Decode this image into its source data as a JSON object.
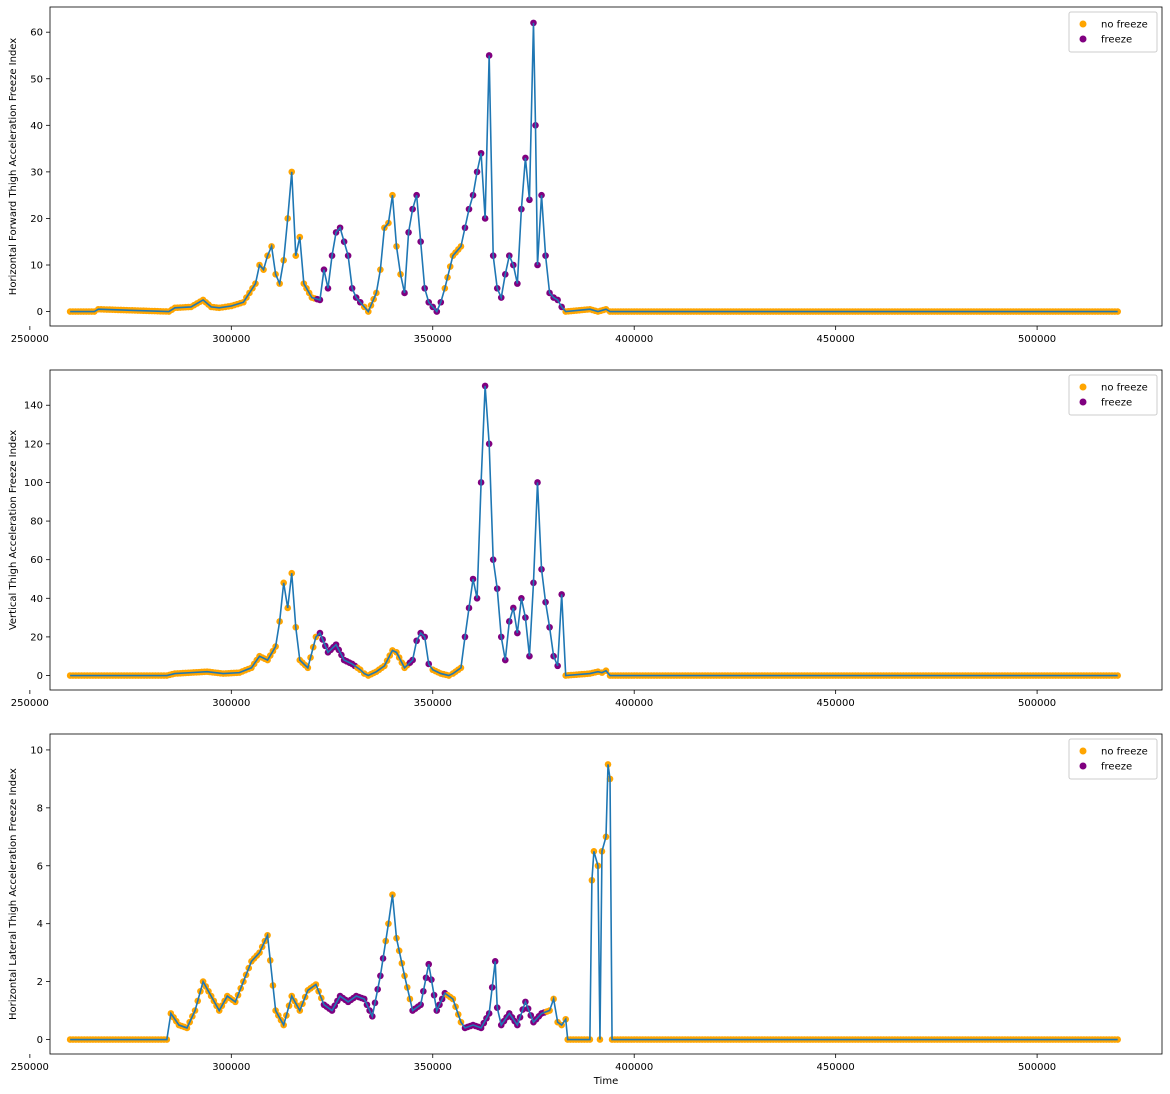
{
  "colors": {
    "line": "#1f77b4",
    "no_freeze": "#ffa500",
    "freeze": "#800080"
  },
  "chart_data": [
    {
      "type": "line",
      "ylabel": "Horizontal Forward Thigh Acceleration Freeze Index",
      "xlabel": "",
      "xlim": [
        260000,
        520000
      ],
      "ylim": [
        0,
        62
      ],
      "xticks": [
        250000,
        300000,
        350000,
        400000,
        450000,
        500000
      ],
      "yticks": [
        0,
        10,
        20,
        30,
        40,
        50,
        60
      ],
      "legend": {
        "position": "top-right",
        "entries": [
          "no freeze",
          "freeze"
        ]
      },
      "x": [
        260000,
        266000,
        267000,
        284500,
        286000,
        290000,
        293000,
        295000,
        297000,
        300000,
        303000,
        306000,
        307000,
        308000,
        309000,
        310000,
        311000,
        312000,
        313000,
        314000,
        315000,
        316000,
        317000,
        318000,
        320000,
        322000,
        323000,
        324000,
        325000,
        326000,
        327000,
        328000,
        329000,
        330000,
        331000,
        332000,
        333000,
        334000,
        336000,
        337000,
        338000,
        339000,
        340000,
        341000,
        342000,
        343000,
        344000,
        345000,
        346000,
        347000,
        348000,
        349000,
        350000,
        351000,
        352000,
        353000,
        355000,
        357000,
        358000,
        359000,
        360000,
        361000,
        362000,
        363000,
        364000,
        365000,
        366000,
        367000,
        368000,
        369000,
        370000,
        371000,
        372000,
        373000,
        374000,
        375000,
        375500,
        376000,
        377000,
        378000,
        379000,
        380000,
        381000,
        382000,
        383000,
        389000,
        391000,
        393000,
        394000,
        400000,
        450000,
        520000
      ],
      "y": [
        0,
        0,
        0.5,
        0,
        0.8,
        1,
        2.5,
        1,
        0.8,
        1.2,
        2,
        6,
        10,
        9,
        12,
        14,
        8,
        6,
        11,
        20,
        30,
        12,
        16,
        6,
        3,
        2.5,
        9,
        5,
        12,
        17,
        18,
        15,
        12,
        5,
        3,
        2,
        1,
        0,
        4,
        9,
        18,
        19,
        25,
        14,
        8,
        4,
        17,
        22,
        25,
        15,
        5,
        2,
        1,
        0,
        2,
        5,
        12,
        14,
        18,
        22,
        25,
        30,
        34,
        20,
        55,
        12,
        5,
        3,
        8,
        12,
        10,
        6,
        22,
        33,
        24,
        62,
        40,
        10,
        25,
        12,
        4,
        3,
        2.5,
        1,
        0,
        0.5,
        0,
        0.5,
        0,
        0,
        0,
        0
      ],
      "freeze_ranges": [
        [
          321000,
          332000
        ],
        [
          343000,
          352000
        ],
        [
          358000,
          370000
        ],
        [
          371000,
          382000
        ]
      ]
    },
    {
      "type": "line",
      "ylabel": "Vertical Thigh Acceleration Freeze Index",
      "xlabel": "",
      "xlim": [
        260000,
        520000
      ],
      "ylim": [
        0,
        150
      ],
      "xticks": [
        250000,
        300000,
        350000,
        400000,
        450000,
        500000
      ],
      "yticks": [
        0,
        20,
        40,
        60,
        80,
        100,
        120,
        140
      ],
      "legend": {
        "position": "top-right",
        "entries": [
          "no freeze",
          "freeze"
        ]
      },
      "x": [
        260000,
        284000,
        286000,
        290000,
        294000,
        298000,
        302000,
        305000,
        307000,
        309000,
        311000,
        312000,
        313000,
        314000,
        315000,
        316000,
        317000,
        319000,
        321000,
        322000,
        324000,
        326000,
        328000,
        330000,
        332000,
        333000,
        334000,
        336000,
        338000,
        340000,
        341000,
        343000,
        345000,
        346000,
        347000,
        348000,
        349000,
        350000,
        352000,
        354000,
        355000,
        357000,
        358000,
        359000,
        360000,
        361000,
        362000,
        363000,
        364000,
        365000,
        366000,
        367000,
        368000,
        369000,
        370000,
        371000,
        372000,
        373000,
        374000,
        375000,
        376000,
        377000,
        378000,
        379000,
        380000,
        381000,
        382000,
        383000,
        389000,
        391000,
        392000,
        393000,
        394000,
        400000,
        450000,
        520000
      ],
      "y": [
        0,
        0,
        1,
        1.5,
        2,
        1,
        1.5,
        4,
        10,
        8,
        15,
        28,
        48,
        35,
        53,
        25,
        8,
        4,
        20,
        22,
        12,
        16,
        8,
        6,
        3,
        1,
        0,
        2,
        5,
        13,
        12,
        4,
        8,
        18,
        22,
        20,
        6,
        3,
        1,
        0,
        1,
        4,
        20,
        35,
        50,
        40,
        100,
        150,
        120,
        60,
        45,
        20,
        8,
        28,
        35,
        22,
        40,
        30,
        10,
        48,
        100,
        55,
        38,
        25,
        10,
        5,
        42,
        0,
        1,
        2,
        1.5,
        2.5,
        0,
        0,
        0,
        0
      ],
      "freeze_ranges": [
        [
          322000,
          331000
        ],
        [
          344000,
          349000
        ],
        [
          358000,
          382000
        ]
      ]
    },
    {
      "type": "line",
      "ylabel": "Horizontal Lateral Thigh Acceleration Freeze Index",
      "xlabel": "Time",
      "xlim": [
        260000,
        520000
      ],
      "ylim": [
        0,
        10
      ],
      "xticks": [
        250000,
        300000,
        350000,
        400000,
        450000,
        500000
      ],
      "yticks": [
        0,
        2,
        4,
        6,
        8,
        10
      ],
      "legend": {
        "position": "top-right",
        "entries": [
          "no freeze",
          "freeze"
        ]
      },
      "x": [
        260000,
        284000,
        285000,
        287000,
        289000,
        291000,
        293000,
        295000,
        297000,
        299000,
        301000,
        303000,
        305000,
        307000,
        309000,
        311000,
        313000,
        315000,
        317000,
        319000,
        321000,
        323000,
        325000,
        327000,
        329000,
        331000,
        333000,
        335000,
        337000,
        339000,
        340000,
        341000,
        343000,
        345000,
        347000,
        349000,
        351000,
        353000,
        355000,
        357000,
        358000,
        360000,
        362000,
        364000,
        365500,
        366000,
        367000,
        369000,
        371000,
        373000,
        375000,
        377000,
        379000,
        380000,
        381000,
        382000,
        383000,
        383500,
        389000,
        389500,
        390000,
        391000,
        391500,
        392000,
        393000,
        393500,
        394000,
        394500,
        400000,
        450000,
        520000
      ],
      "y": [
        0,
        0,
        0.9,
        0.5,
        0.4,
        1,
        2,
        1.5,
        1,
        1.5,
        1.3,
        2,
        2.7,
        3,
        3.6,
        1,
        0.5,
        1.5,
        1,
        1.7,
        1.9,
        1.2,
        1,
        1.5,
        1.3,
        1.5,
        1.4,
        0.8,
        2.2,
        4,
        5,
        3.5,
        2.2,
        1,
        1.2,
        2.6,
        1,
        1.6,
        1.4,
        0.6,
        0.4,
        0.5,
        0.4,
        0.9,
        2.7,
        1.1,
        0.5,
        0.9,
        0.5,
        1.3,
        0.6,
        0.9,
        1,
        1.4,
        0.6,
        0.5,
        0.7,
        0,
        0,
        5.5,
        6.5,
        6,
        0,
        6.5,
        7,
        9.5,
        9,
        0,
        0,
        0,
        0
      ],
      "freeze_ranges": [
        [
          323000,
          338000
        ],
        [
          345000,
          353000
        ],
        [
          358000,
          378000
        ]
      ]
    }
  ]
}
